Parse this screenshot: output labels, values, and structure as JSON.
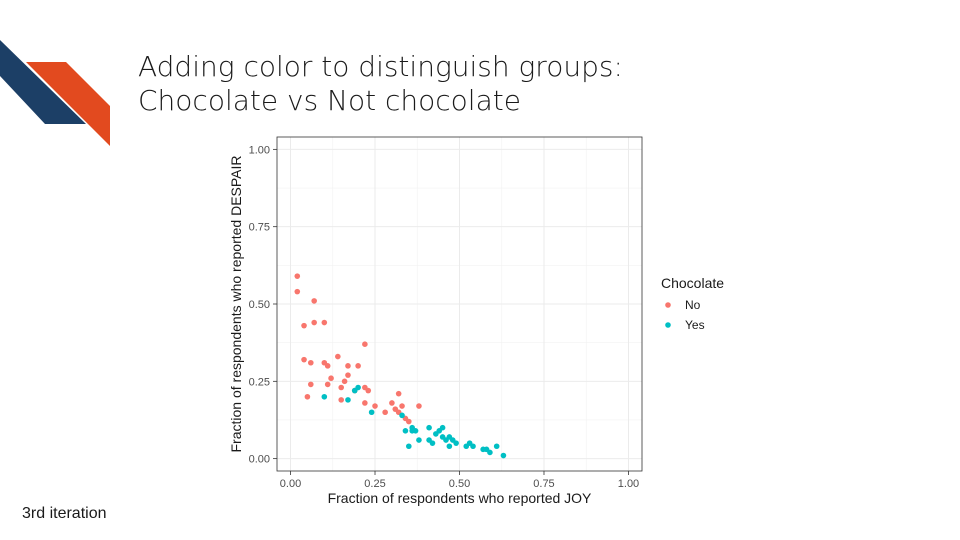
{
  "slide": {
    "title_lines": [
      "Adding color to distinguish groups:",
      "Chocolate vs Not chocolate"
    ],
    "footnote": "3rd iteration",
    "colors": {
      "stripe_dark": "#1c3f66",
      "stripe_accent": "#e24a1f"
    }
  },
  "chart_data": {
    "type": "scatter",
    "xlabel": "Fraction of respondents who reported JOY",
    "ylabel": "Fraction of respondents who reported DESPAIR",
    "xlim": [
      -0.04,
      1.04
    ],
    "ylim": [
      -0.04,
      1.04
    ],
    "xticks": [
      0.0,
      0.25,
      0.5,
      0.75,
      1.0
    ],
    "yticks": [
      0.0,
      0.25,
      0.5,
      0.75,
      1.0
    ],
    "xtick_labels": [
      "0.00",
      "0.25",
      "0.50",
      "0.75",
      "1.00"
    ],
    "ytick_labels": [
      "0.00",
      "0.25",
      "0.50",
      "0.75",
      "1.00"
    ],
    "grid": true,
    "legend": {
      "title": "Chocolate",
      "position": "right"
    },
    "series": [
      {
        "name": "No",
        "color": "#f8766d",
        "points": [
          [
            0.02,
            0.59
          ],
          [
            0.02,
            0.54
          ],
          [
            0.07,
            0.51
          ],
          [
            0.04,
            0.43
          ],
          [
            0.07,
            0.44
          ],
          [
            0.1,
            0.44
          ],
          [
            0.22,
            0.37
          ],
          [
            0.04,
            0.32
          ],
          [
            0.06,
            0.31
          ],
          [
            0.1,
            0.31
          ],
          [
            0.11,
            0.3
          ],
          [
            0.14,
            0.33
          ],
          [
            0.17,
            0.3
          ],
          [
            0.2,
            0.3
          ],
          [
            0.17,
            0.27
          ],
          [
            0.16,
            0.25
          ],
          [
            0.12,
            0.26
          ],
          [
            0.06,
            0.24
          ],
          [
            0.11,
            0.24
          ],
          [
            0.15,
            0.23
          ],
          [
            0.19,
            0.22
          ],
          [
            0.22,
            0.23
          ],
          [
            0.23,
            0.22
          ],
          [
            0.05,
            0.2
          ],
          [
            0.15,
            0.19
          ],
          [
            0.22,
            0.18
          ],
          [
            0.25,
            0.17
          ],
          [
            0.28,
            0.15
          ],
          [
            0.31,
            0.16
          ],
          [
            0.3,
            0.18
          ],
          [
            0.32,
            0.21
          ],
          [
            0.33,
            0.17
          ],
          [
            0.32,
            0.15
          ],
          [
            0.34,
            0.13
          ],
          [
            0.35,
            0.12
          ],
          [
            0.38,
            0.17
          ]
        ]
      },
      {
        "name": "Yes",
        "color": "#00bfc4",
        "points": [
          [
            0.1,
            0.2
          ],
          [
            0.17,
            0.19
          ],
          [
            0.2,
            0.23
          ],
          [
            0.19,
            0.22
          ],
          [
            0.24,
            0.15
          ],
          [
            0.33,
            0.14
          ],
          [
            0.34,
            0.09
          ],
          [
            0.36,
            0.1
          ],
          [
            0.36,
            0.09
          ],
          [
            0.37,
            0.09
          ],
          [
            0.35,
            0.04
          ],
          [
            0.38,
            0.06
          ],
          [
            0.41,
            0.1
          ],
          [
            0.41,
            0.06
          ],
          [
            0.42,
            0.05
          ],
          [
            0.43,
            0.08
          ],
          [
            0.44,
            0.09
          ],
          [
            0.45,
            0.1
          ],
          [
            0.45,
            0.07
          ],
          [
            0.46,
            0.06
          ],
          [
            0.47,
            0.07
          ],
          [
            0.47,
            0.04
          ],
          [
            0.48,
            0.06
          ],
          [
            0.49,
            0.05
          ],
          [
            0.52,
            0.04
          ],
          [
            0.53,
            0.05
          ],
          [
            0.54,
            0.04
          ],
          [
            0.57,
            0.03
          ],
          [
            0.58,
            0.03
          ],
          [
            0.59,
            0.02
          ],
          [
            0.61,
            0.04
          ],
          [
            0.63,
            0.01
          ]
        ]
      }
    ]
  }
}
